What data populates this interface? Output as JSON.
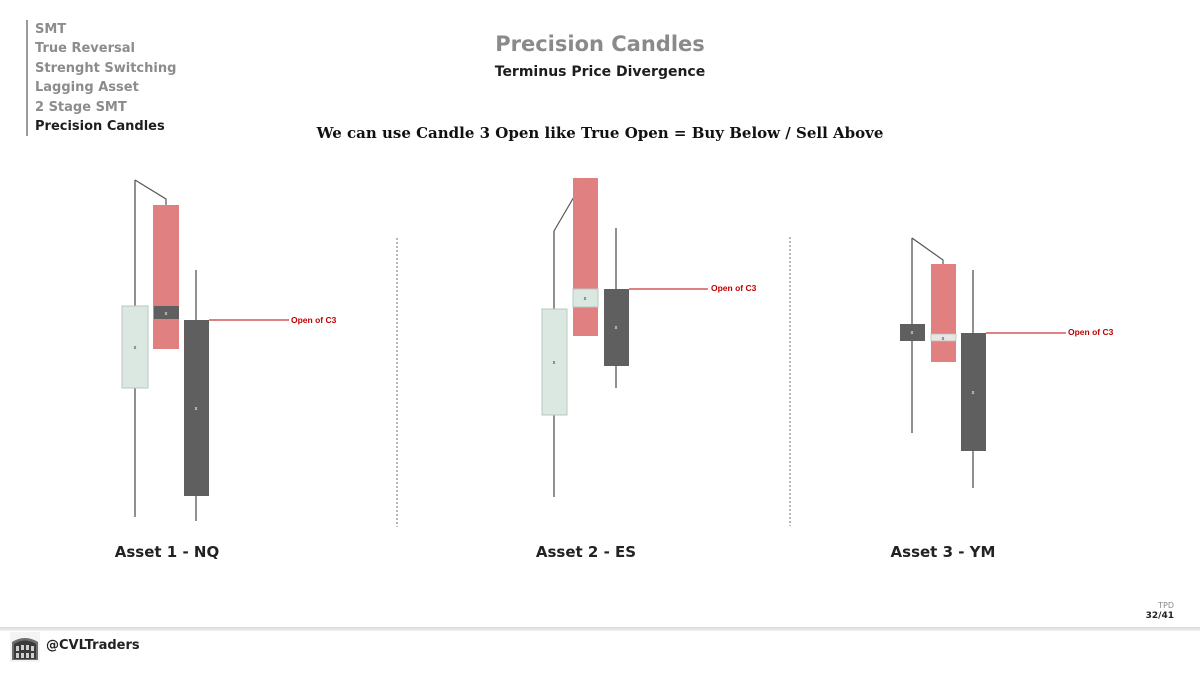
{
  "nav": {
    "items": [
      {
        "label": "SMT",
        "active": false
      },
      {
        "label": "True Reversal",
        "active": false
      },
      {
        "label": "Strenght Switching",
        "active": false
      },
      {
        "label": "Lagging Asset",
        "active": false
      },
      {
        "label": "2 Stage SMT",
        "active": false
      },
      {
        "label": "Precision Candles",
        "active": true
      }
    ]
  },
  "header": {
    "title": "Precision Candles",
    "subtitle": "Terminus Price Divergence",
    "headline": "We can use Candle 3 Open like True Open = Buy Below / Sell Above"
  },
  "assets": [
    {
      "label": "Asset 1 - NQ",
      "annotation": "Open of C3"
    },
    {
      "label": "Asset 2 - ES",
      "annotation": "Open of C3"
    },
    {
      "label": "Asset 3 - YM",
      "annotation": "Open of C3"
    }
  ],
  "colors": {
    "bullish": "#dbe8e1",
    "bearish": "#e08080",
    "dark": "#5f5f5f",
    "marker": "#e6e6e6",
    "annotation": "#c00000",
    "wick": "#555555"
  },
  "footer": {
    "tpd": "TPD",
    "page": "32/41",
    "handle": "@CVLTraders",
    "logo_icon": "colosseum-logo-icon"
  }
}
